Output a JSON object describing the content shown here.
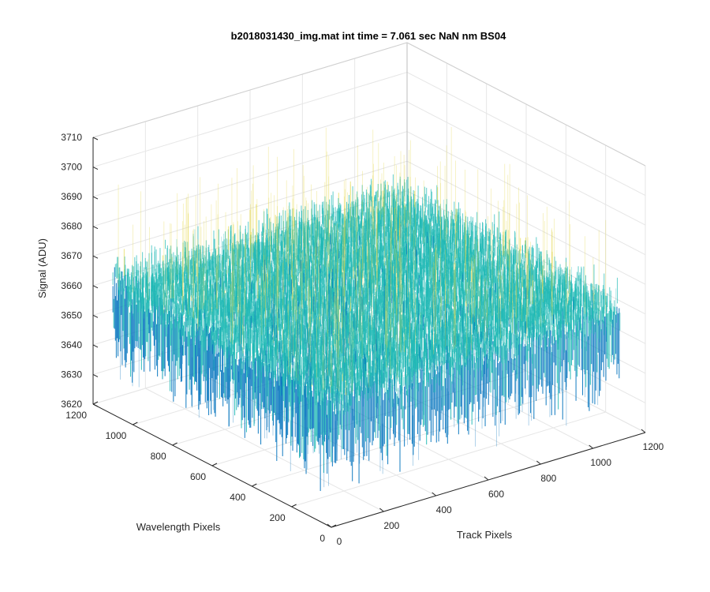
{
  "chart_data": {
    "type": "surface",
    "title": "b2018031430_img.mat int time = 7.061 sec  NaN nm BS04",
    "xlabel": "Track Pixels",
    "ylabel": "Wavelength Pixels",
    "zlabel": "Signal (ADU)",
    "xlim": [
      0,
      1200
    ],
    "ylim": [
      0,
      1200
    ],
    "zlim": [
      3620,
      3710
    ],
    "x_ticks": [
      "0",
      "200",
      "400",
      "600",
      "800",
      "1000",
      "1200"
    ],
    "y_ticks": [
      "0",
      "200",
      "400",
      "600",
      "800",
      "1000",
      "1200"
    ],
    "z_ticks": [
      "3620",
      "3630",
      "3640",
      "3650",
      "3660",
      "3670",
      "3680",
      "3690",
      "3700",
      "3710"
    ],
    "surface": {
      "x_range": [
        0,
        1100
      ],
      "y_range": [
        0,
        1100
      ],
      "mean_signal": 3655,
      "min_signal": 3630,
      "max_signal": 3705
    },
    "grid": true,
    "colors": {
      "low": "#0072bd",
      "mid": "#1fb9b5",
      "high": "#e4d84c",
      "axis": "#262626",
      "grid": "#e6e6e6"
    }
  }
}
